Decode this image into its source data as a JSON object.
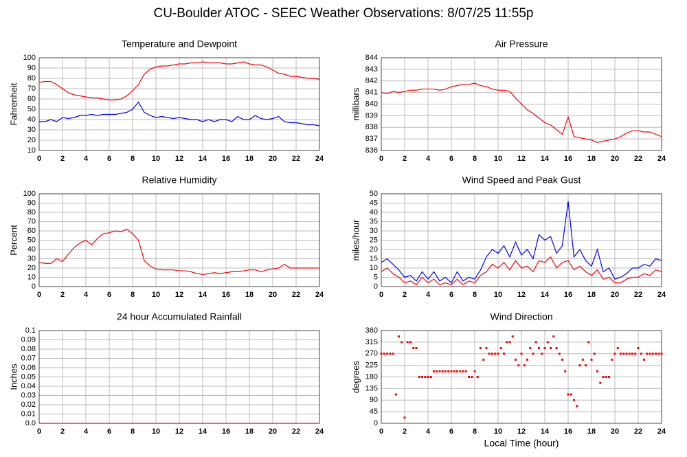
{
  "title": "CU-Boulder ATOC - SEEC Weather Observations: 8/07/25 11:55p",
  "chart_data": [
    {
      "type": "line",
      "title": "Temperature and Dewpoint",
      "ylabel": "Fahrenheit",
      "xlim": [
        0,
        24
      ],
      "xticks": [
        0,
        2,
        4,
        6,
        8,
        10,
        12,
        14,
        16,
        18,
        20,
        22,
        24
      ],
      "ylim": [
        10,
        100
      ],
      "yticks": [
        10,
        20,
        30,
        40,
        50,
        60,
        70,
        80,
        90,
        100
      ],
      "grid": true,
      "x": [
        0,
        0.5,
        1,
        1.5,
        2,
        2.5,
        3,
        3.5,
        4,
        4.5,
        5,
        5.5,
        6,
        6.5,
        7,
        7.5,
        8,
        8.5,
        9,
        9.5,
        10,
        10.5,
        11,
        11.5,
        12,
        12.5,
        13,
        13.5,
        14,
        14.5,
        15,
        15.5,
        16,
        16.5,
        17,
        17.5,
        18,
        18.5,
        19,
        19.5,
        20,
        20.5,
        21,
        21.5,
        22,
        22.5,
        23,
        23.5,
        24
      ],
      "series": [
        {
          "color": "#ff0000",
          "values": [
            76,
            77,
            77,
            74,
            70,
            66,
            64,
            63,
            62,
            61,
            61,
            60,
            59,
            59,
            60,
            63,
            68,
            74,
            84,
            89,
            91,
            92,
            92,
            93,
            94,
            94,
            95,
            95,
            96,
            95,
            95,
            95,
            94,
            94,
            95,
            96,
            94,
            93,
            93,
            91,
            88,
            85,
            84,
            82,
            82,
            81,
            80,
            80,
            79
          ]
        },
        {
          "color": "#0000ff",
          "values": [
            38,
            38,
            40,
            38,
            42,
            41,
            42,
            44,
            44,
            45,
            44,
            45,
            45,
            45,
            46,
            47,
            50,
            57,
            47,
            44,
            42,
            43,
            42,
            41,
            42,
            41,
            40,
            40,
            38,
            40,
            38,
            40,
            40,
            38,
            43,
            40,
            40,
            44,
            41,
            40,
            41,
            43,
            38,
            37,
            37,
            36,
            35,
            35,
            34
          ]
        }
      ]
    },
    {
      "type": "line",
      "title": "Air Pressure",
      "ylabel": "millibars",
      "xlim": [
        0,
        24
      ],
      "xticks": [
        0,
        2,
        4,
        6,
        8,
        10,
        12,
        14,
        16,
        18,
        20,
        22,
        24
      ],
      "ylim": [
        836,
        844
      ],
      "yticks": [
        836,
        837,
        838,
        839,
        840,
        841,
        842,
        843,
        844
      ],
      "grid": true,
      "x": [
        0,
        0.5,
        1,
        1.5,
        2,
        2.5,
        3,
        3.5,
        4,
        4.5,
        5,
        5.5,
        6,
        6.5,
        7,
        7.5,
        8,
        8.5,
        9,
        9.5,
        10,
        10.5,
        11,
        11.5,
        12,
        12.5,
        13,
        13.5,
        14,
        14.5,
        15,
        15.5,
        16,
        16.5,
        17,
        17.5,
        18,
        18.5,
        19,
        19.5,
        20,
        20.5,
        21,
        21.5,
        22,
        22.5,
        23,
        23.5,
        24
      ],
      "series": [
        {
          "color": "#ff0000",
          "values": [
            841.0,
            840.9,
            841.1,
            841.0,
            841.1,
            841.2,
            841.2,
            841.3,
            841.3,
            841.3,
            841.2,
            841.3,
            841.5,
            841.6,
            841.7,
            841.7,
            841.8,
            841.6,
            841.5,
            841.3,
            841.2,
            841.2,
            841.1,
            840.5,
            840.0,
            839.5,
            839.2,
            838.8,
            838.4,
            838.2,
            837.8,
            837.4,
            838.9,
            837.2,
            837.1,
            837.0,
            836.9,
            836.7,
            836.8,
            836.9,
            837.0,
            837.2,
            837.5,
            837.7,
            837.7,
            837.6,
            837.6,
            837.4,
            837.2
          ]
        }
      ]
    },
    {
      "type": "line",
      "title": "Relative Humidity",
      "ylabel": "Percent",
      "xlim": [
        0,
        24
      ],
      "xticks": [
        0,
        2,
        4,
        6,
        8,
        10,
        12,
        14,
        16,
        18,
        20,
        22,
        24
      ],
      "ylim": [
        0,
        100
      ],
      "yticks": [
        0,
        10,
        20,
        30,
        40,
        50,
        60,
        70,
        80,
        90,
        100
      ],
      "grid": true,
      "x": [
        0,
        0.5,
        1,
        1.5,
        2,
        2.5,
        3,
        3.5,
        4,
        4.5,
        5,
        5.5,
        6,
        6.5,
        7,
        7.5,
        8,
        8.5,
        9,
        9.5,
        10,
        10.5,
        11,
        11.5,
        12,
        12.5,
        13,
        13.5,
        14,
        14.5,
        15,
        15.5,
        16,
        16.5,
        17,
        17.5,
        18,
        18.5,
        19,
        19.5,
        20,
        20.5,
        21,
        21.5,
        22,
        22.5,
        23,
        23.5,
        24
      ],
      "series": [
        {
          "color": "#ff0000",
          "values": [
            26,
            25,
            25,
            30,
            27,
            35,
            42,
            47,
            50,
            45,
            52,
            57,
            58,
            60,
            59,
            62,
            57,
            50,
            28,
            22,
            19,
            18,
            18,
            18,
            17,
            17,
            16,
            14,
            13,
            14,
            15,
            14,
            15,
            16,
            16,
            17,
            18,
            18,
            16,
            18,
            19,
            20,
            24,
            20,
            20,
            20,
            20,
            20,
            20
          ]
        }
      ]
    },
    {
      "type": "line",
      "title": "Wind Speed and Peak Gust",
      "ylabel": "miles/hour",
      "xlim": [
        0,
        24
      ],
      "xticks": [
        0,
        2,
        4,
        6,
        8,
        10,
        12,
        14,
        16,
        18,
        20,
        22,
        24
      ],
      "ylim": [
        0,
        50
      ],
      "yticks": [
        0,
        5,
        10,
        15,
        20,
        25,
        30,
        35,
        40,
        45,
        50
      ],
      "grid": true,
      "x": [
        0,
        0.5,
        1,
        1.5,
        2,
        2.5,
        3,
        3.5,
        4,
        4.5,
        5,
        5.5,
        6,
        6.5,
        7,
        7.5,
        8,
        8.5,
        9,
        9.5,
        10,
        10.5,
        11,
        11.5,
        12,
        12.5,
        13,
        13.5,
        14,
        14.5,
        15,
        15.5,
        16,
        16.5,
        17,
        17.5,
        18,
        18.5,
        19,
        19.5,
        20,
        20.5,
        21,
        21.5,
        22,
        22.5,
        23,
        23.5,
        24
      ],
      "series": [
        {
          "color": "#0000ff",
          "values": [
            13,
            15,
            12,
            9,
            5,
            6,
            3,
            8,
            4,
            8,
            3,
            5,
            2,
            8,
            3,
            5,
            4,
            9,
            16,
            20,
            18,
            22,
            16,
            24,
            17,
            20,
            15,
            28,
            25,
            27,
            18,
            22,
            46,
            16,
            20,
            14,
            11,
            20,
            8,
            10,
            4,
            5,
            7,
            10,
            10,
            12,
            11,
            15,
            14
          ]
        },
        {
          "color": "#ff0000",
          "values": [
            8,
            10,
            7,
            5,
            2,
            3,
            1,
            5,
            2,
            4,
            1,
            2,
            1,
            4,
            1,
            3,
            2,
            6,
            8,
            12,
            10,
            13,
            9,
            14,
            10,
            11,
            8,
            14,
            13,
            16,
            10,
            13,
            14,
            9,
            11,
            8,
            6,
            9,
            4,
            5,
            2,
            2,
            4,
            5,
            5,
            7,
            6,
            9,
            8
          ]
        }
      ]
    },
    {
      "type": "line",
      "title": "24 hour Accumulated Rainfall",
      "ylabel": "Inches",
      "xlim": [
        0,
        24
      ],
      "xticks": [
        0,
        2,
        4,
        6,
        8,
        10,
        12,
        14,
        16,
        18,
        20,
        22,
        24
      ],
      "ylim": [
        0,
        0.1
      ],
      "yticks": [
        {
          "value": 0,
          "label": "0.0"
        },
        0.01,
        0.02,
        0.03,
        0.04,
        0.05,
        0.06,
        0.07,
        0.08,
        0.09,
        0.1
      ],
      "grid": true,
      "x": [
        0,
        24
      ],
      "series": [
        {
          "color": "#ff0000",
          "values": [
            0,
            0
          ]
        }
      ]
    },
    {
      "type": "scatter",
      "title": "Wind Direction",
      "ylabel": "degrees",
      "xlabel": "Local Time (hour)",
      "xlim": [
        0,
        24
      ],
      "xticks": [
        0,
        2,
        4,
        6,
        8,
        10,
        12,
        14,
        16,
        18,
        20,
        22,
        24
      ],
      "ylim": [
        0,
        360
      ],
      "yticks": [
        0,
        45,
        90,
        135,
        180,
        225,
        270,
        315,
        360
      ],
      "grid": true,
      "x": [
        0,
        0.25,
        0.5,
        0.75,
        1,
        1.25,
        1.5,
        1.75,
        2,
        2.25,
        2.5,
        2.75,
        3,
        3.25,
        3.5,
        3.75,
        4,
        4.25,
        4.5,
        4.75,
        5,
        5.25,
        5.5,
        5.75,
        6,
        6.25,
        6.5,
        6.75,
        7,
        7.25,
        7.5,
        7.75,
        8,
        8.25,
        8.5,
        8.75,
        9,
        9.25,
        9.5,
        9.75,
        10,
        10.25,
        10.5,
        10.75,
        11,
        11.25,
        11.5,
        11.75,
        12,
        12.25,
        12.5,
        12.75,
        13,
        13.25,
        13.5,
        13.75,
        14,
        14.25,
        14.5,
        14.75,
        15,
        15.25,
        15.5,
        15.75,
        16,
        16.25,
        16.5,
        16.75,
        17,
        17.25,
        17.5,
        17.75,
        18,
        18.25,
        18.5,
        18.75,
        19,
        19.25,
        19.5,
        19.75,
        20,
        20.25,
        20.5,
        20.75,
        21,
        21.25,
        21.5,
        21.75,
        22,
        22.25,
        22.5,
        22.75,
        23,
        23.25,
        23.5,
        23.75,
        24
      ],
      "series": [
        {
          "color": "#ff0000",
          "values": [
            270,
            270,
            270,
            270,
            270,
            112,
            337,
            315,
            22,
            315,
            315,
            292,
            292,
            180,
            180,
            180,
            180,
            180,
            202,
            202,
            202,
            202,
            202,
            202,
            202,
            202,
            202,
            202,
            202,
            202,
            180,
            180,
            202,
            180,
            292,
            247,
            292,
            270,
            270,
            270,
            270,
            292,
            270,
            315,
            315,
            337,
            247,
            225,
            270,
            225,
            247,
            292,
            270,
            315,
            292,
            270,
            292,
            315,
            292,
            337,
            292,
            270,
            247,
            202,
            112,
            112,
            90,
            67,
            225,
            247,
            225,
            315,
            247,
            270,
            202,
            157,
            180,
            180,
            180,
            247,
            270,
            292,
            270,
            270,
            270,
            270,
            270,
            270,
            292,
            270,
            247,
            270,
            270,
            270,
            270,
            270,
            270
          ]
        }
      ]
    }
  ]
}
